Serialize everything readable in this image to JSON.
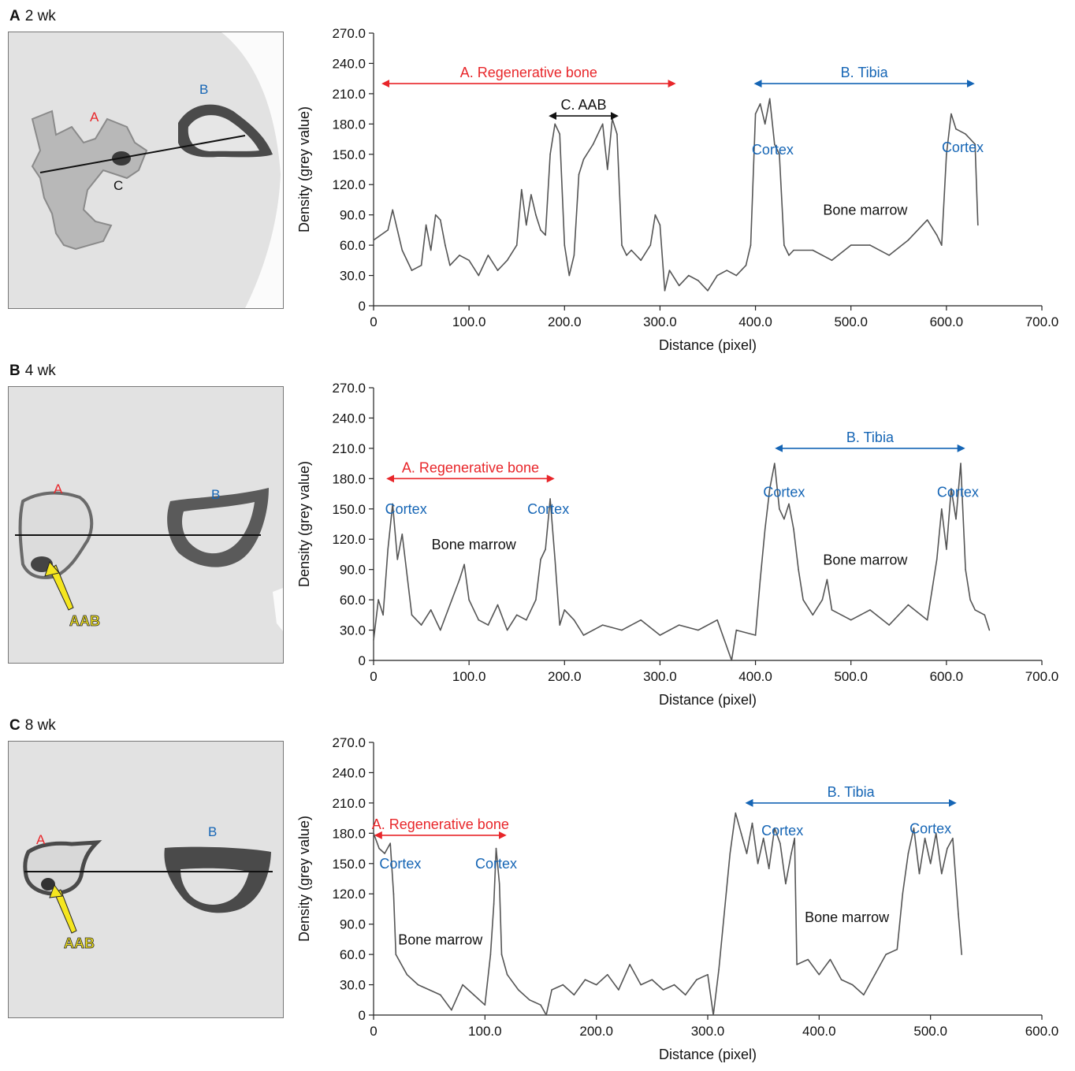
{
  "colors": {
    "red": "#e8262a",
    "blue": "#1565b5",
    "line": "#555555",
    "axis": "#222222",
    "yellow": "#f5e620"
  },
  "panels": [
    {
      "letter": "A",
      "time": "2 wk",
      "ct": {
        "labels": {
          "A": "A",
          "B": "B",
          "C": "C"
        }
      }
    },
    {
      "letter": "B",
      "time": "4 wk",
      "ct": {
        "labels": {
          "A": "A",
          "B": "B",
          "arrow": "AAB"
        }
      }
    },
    {
      "letter": "C",
      "time": "8 wk",
      "ct": {
        "labels": {
          "A": "A",
          "B": "B",
          "arrow": "AAB"
        }
      }
    }
  ],
  "chart_data": [
    {
      "type": "line",
      "xlabel": "Distance (pixel)",
      "ylabel": "Density (grey value)",
      "xlim": [
        0,
        700
      ],
      "ylim": [
        0,
        270
      ],
      "xticks": [
        "0",
        "100.0",
        "200.0",
        "300.0",
        "400.0",
        "500.0",
        "600.0",
        "700.0"
      ],
      "yticks": [
        "0",
        "30.0",
        "60.0",
        "90.0",
        "120.0",
        "150.0",
        "180.0",
        "210.0",
        "240.0",
        "270.0"
      ],
      "x": [
        0,
        15,
        20,
        30,
        40,
        50,
        55,
        60,
        65,
        70,
        75,
        80,
        90,
        100,
        110,
        120,
        130,
        140,
        150,
        155,
        160,
        165,
        170,
        175,
        180,
        185,
        190,
        195,
        200,
        205,
        210,
        215,
        220,
        230,
        240,
        245,
        250,
        255,
        260,
        265,
        270,
        280,
        290,
        295,
        300,
        305,
        310,
        320,
        330,
        340,
        350,
        360,
        370,
        380,
        390,
        395,
        400,
        405,
        410,
        415,
        420,
        425,
        430,
        435,
        440,
        460,
        480,
        500,
        520,
        540,
        560,
        580,
        590,
        595,
        600,
        605,
        610,
        620,
        630,
        633
      ],
      "y": [
        65,
        75,
        95,
        55,
        35,
        40,
        80,
        55,
        90,
        85,
        60,
        40,
        50,
        45,
        30,
        50,
        35,
        45,
        60,
        115,
        80,
        110,
        90,
        75,
        70,
        150,
        180,
        170,
        60,
        30,
        50,
        130,
        145,
        160,
        180,
        135,
        185,
        170,
        60,
        50,
        55,
        45,
        60,
        90,
        80,
        15,
        35,
        20,
        30,
        25,
        15,
        30,
        35,
        30,
        40,
        60,
        190,
        200,
        180,
        205,
        160,
        150,
        60,
        50,
        55,
        55,
        45,
        60,
        60,
        50,
        65,
        85,
        70,
        60,
        150,
        190,
        175,
        170,
        160,
        80
      ],
      "annotations": [
        {
          "text": "A. Regenerative bone",
          "x1": 10,
          "x2": 315,
          "y": 220,
          "color": "red"
        },
        {
          "text": "C. AAB",
          "x1": 185,
          "x2": 255,
          "y": 188,
          "color": "black"
        },
        {
          "text": "B. Tibia",
          "x1": 400,
          "x2": 628,
          "y": 220,
          "color": "blue"
        }
      ],
      "labels": [
        {
          "text": "Cortex",
          "x": 418,
          "y": 150,
          "color": "blue"
        },
        {
          "text": "Cortex",
          "x": 617,
          "y": 152,
          "color": "blue"
        },
        {
          "text": "Bone marrow",
          "x": 515,
          "y": 90,
          "color": "black"
        }
      ]
    },
    {
      "type": "line",
      "xlabel": "Distance (pixel)",
      "ylabel": "Density (grey value)",
      "xlim": [
        0,
        700
      ],
      "ylim": [
        0,
        270
      ],
      "xticks": [
        "0",
        "100.0",
        "200.0",
        "300.0",
        "400.0",
        "500.0",
        "600.0",
        "700.0"
      ],
      "yticks": [
        "0",
        "30.0",
        "60.0",
        "90.0",
        "120.0",
        "150.0",
        "180.0",
        "210.0",
        "240.0",
        "270.0"
      ],
      "x": [
        0,
        5,
        10,
        15,
        20,
        25,
        30,
        40,
        50,
        60,
        70,
        80,
        90,
        95,
        100,
        110,
        120,
        130,
        140,
        150,
        160,
        170,
        175,
        180,
        185,
        190,
        195,
        200,
        210,
        220,
        240,
        260,
        280,
        300,
        320,
        340,
        360,
        375,
        380,
        400,
        405,
        410,
        415,
        420,
        425,
        430,
        435,
        440,
        445,
        450,
        460,
        470,
        475,
        480,
        500,
        520,
        540,
        560,
        580,
        585,
        590,
        595,
        600,
        605,
        610,
        615,
        620,
        625,
        630,
        640,
        645
      ],
      "y": [
        20,
        60,
        45,
        110,
        155,
        100,
        125,
        45,
        35,
        50,
        30,
        55,
        80,
        95,
        60,
        40,
        35,
        55,
        30,
        45,
        40,
        60,
        100,
        110,
        160,
        100,
        35,
        50,
        40,
        25,
        35,
        30,
        40,
        25,
        35,
        30,
        40,
        0,
        30,
        25,
        80,
        130,
        170,
        195,
        150,
        140,
        155,
        130,
        90,
        60,
        45,
        60,
        80,
        50,
        40,
        50,
        35,
        55,
        40,
        70,
        100,
        150,
        110,
        170,
        140,
        195,
        90,
        60,
        50,
        45,
        30
      ],
      "annotations": [
        {
          "text": "A. Regenerative bone",
          "x1": 15,
          "x2": 188,
          "y": 180,
          "color": "red"
        },
        {
          "text": "B. Tibia",
          "x1": 422,
          "x2": 618,
          "y": 210,
          "color": "blue"
        }
      ],
      "labels": [
        {
          "text": "Cortex",
          "x": 34,
          "y": 145,
          "color": "blue"
        },
        {
          "text": "Cortex",
          "x": 183,
          "y": 145,
          "color": "blue"
        },
        {
          "text": "Bone marrow",
          "x": 105,
          "y": 110,
          "color": "black"
        },
        {
          "text": "Cortex",
          "x": 430,
          "y": 162,
          "color": "blue"
        },
        {
          "text": "Cortex",
          "x": 612,
          "y": 162,
          "color": "blue"
        },
        {
          "text": "Bone marrow",
          "x": 515,
          "y": 95,
          "color": "black"
        }
      ]
    },
    {
      "type": "line",
      "xlabel": "Distance (pixel)",
      "ylabel": "Density (grey value)",
      "xlim": [
        0,
        600
      ],
      "ylim": [
        0,
        270
      ],
      "xticks": [
        "0",
        "100.0",
        "200.0",
        "300.0",
        "400.0",
        "500.0",
        "600.0"
      ],
      "yticks": [
        "0",
        "30.0",
        "60.0",
        "90.0",
        "120.0",
        "150.0",
        "180.0",
        "210.0",
        "240.0",
        "270.0"
      ],
      "x": [
        0,
        5,
        10,
        15,
        18,
        20,
        25,
        30,
        40,
        50,
        60,
        70,
        80,
        90,
        100,
        105,
        108,
        110,
        113,
        115,
        120,
        130,
        140,
        150,
        155,
        160,
        170,
        180,
        190,
        200,
        210,
        220,
        230,
        240,
        250,
        260,
        270,
        280,
        290,
        300,
        305,
        310,
        320,
        325,
        330,
        335,
        340,
        345,
        350,
        355,
        360,
        365,
        370,
        375,
        378,
        380,
        390,
        400,
        410,
        420,
        430,
        440,
        450,
        460,
        470,
        475,
        480,
        485,
        490,
        495,
        500,
        505,
        510,
        515,
        520,
        525,
        528
      ],
      "y": [
        180,
        165,
        160,
        170,
        120,
        60,
        50,
        40,
        30,
        25,
        20,
        5,
        30,
        20,
        10,
        60,
        110,
        165,
        130,
        60,
        40,
        25,
        15,
        10,
        0,
        25,
        30,
        20,
        35,
        30,
        40,
        25,
        50,
        30,
        35,
        25,
        30,
        20,
        35,
        40,
        0,
        45,
        160,
        200,
        180,
        160,
        190,
        150,
        175,
        145,
        185,
        170,
        130,
        160,
        175,
        50,
        55,
        40,
        55,
        35,
        30,
        20,
        40,
        60,
        65,
        120,
        160,
        185,
        140,
        175,
        150,
        180,
        140,
        165,
        175,
        100,
        60
      ],
      "annotations": [
        {
          "text": "A. Regenerative bone",
          "x1": 2,
          "x2": 118,
          "y": 178,
          "color": "red"
        },
        {
          "text": "B. Tibia",
          "x1": 335,
          "x2": 522,
          "y": 210,
          "color": "blue"
        }
      ],
      "labels": [
        {
          "text": "Cortex",
          "x": 24,
          "y": 145,
          "color": "blue"
        },
        {
          "text": "Cortex",
          "x": 110,
          "y": 145,
          "color": "blue"
        },
        {
          "text": "Bone marrow",
          "x": 60,
          "y": 70,
          "color": "black"
        },
        {
          "text": "Cortex",
          "x": 367,
          "y": 178,
          "color": "blue"
        },
        {
          "text": "Cortex",
          "x": 500,
          "y": 180,
          "color": "blue"
        },
        {
          "text": "Bone marrow",
          "x": 425,
          "y": 92,
          "color": "black"
        }
      ]
    }
  ]
}
